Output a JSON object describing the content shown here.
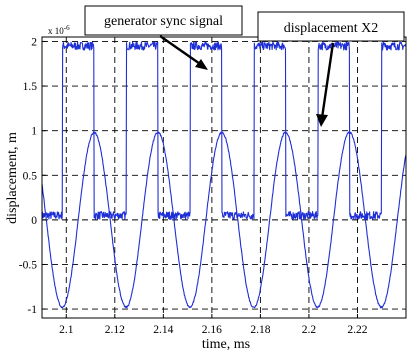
{
  "chart_data": {
    "type": "line",
    "title": "",
    "xlabel": "time, ms",
    "ylabel": "displacement, m",
    "y_exponent_label": "x 10",
    "y_exponent": "-6",
    "xlim": [
      2.09,
      2.24
    ],
    "ylim": [
      -1.1,
      2.05
    ],
    "x_ticks": [
      2.1,
      2.12,
      2.14,
      2.16,
      2.18,
      2.2,
      2.22
    ],
    "x_tick_labels": [
      "2.1",
      "2.12",
      "2.14",
      "2.16",
      "2.18",
      "2.2",
      "2.22"
    ],
    "y_ticks": [
      -1,
      -0.5,
      0,
      0.5,
      1,
      1.5,
      2
    ],
    "y_tick_labels": [
      "-1",
      "-0.5",
      "0",
      "0.5",
      "1",
      "1.5",
      "2"
    ],
    "grid": true,
    "series": [
      {
        "id": "sync",
        "color": "#1f2fd6",
        "period_ms": 0.0263,
        "high_level": 1.95,
        "low_level": 0.05,
        "rise_times_ms": [
          2.0985,
          2.1248,
          2.1511,
          2.1774,
          2.2037,
          2.23
        ],
        "fall_times_ms": [
          2.1115,
          2.1378,
          2.1641,
          2.1904,
          2.2167
        ]
      },
      {
        "id": "displacement",
        "color": "#1f2fd6",
        "amplitude": 0.98,
        "period_ms": 0.0263,
        "peak_times_ms": [
          2.1115,
          2.1378,
          2.1641,
          2.1904,
          2.2167
        ],
        "trough_times_ms": [
          2.0984,
          2.1247,
          2.151,
          2.1773,
          2.2036,
          2.2299
        ]
      }
    ],
    "annotations": [
      {
        "text": "generator sync signal"
      },
      {
        "text": "displacement X2"
      }
    ]
  }
}
